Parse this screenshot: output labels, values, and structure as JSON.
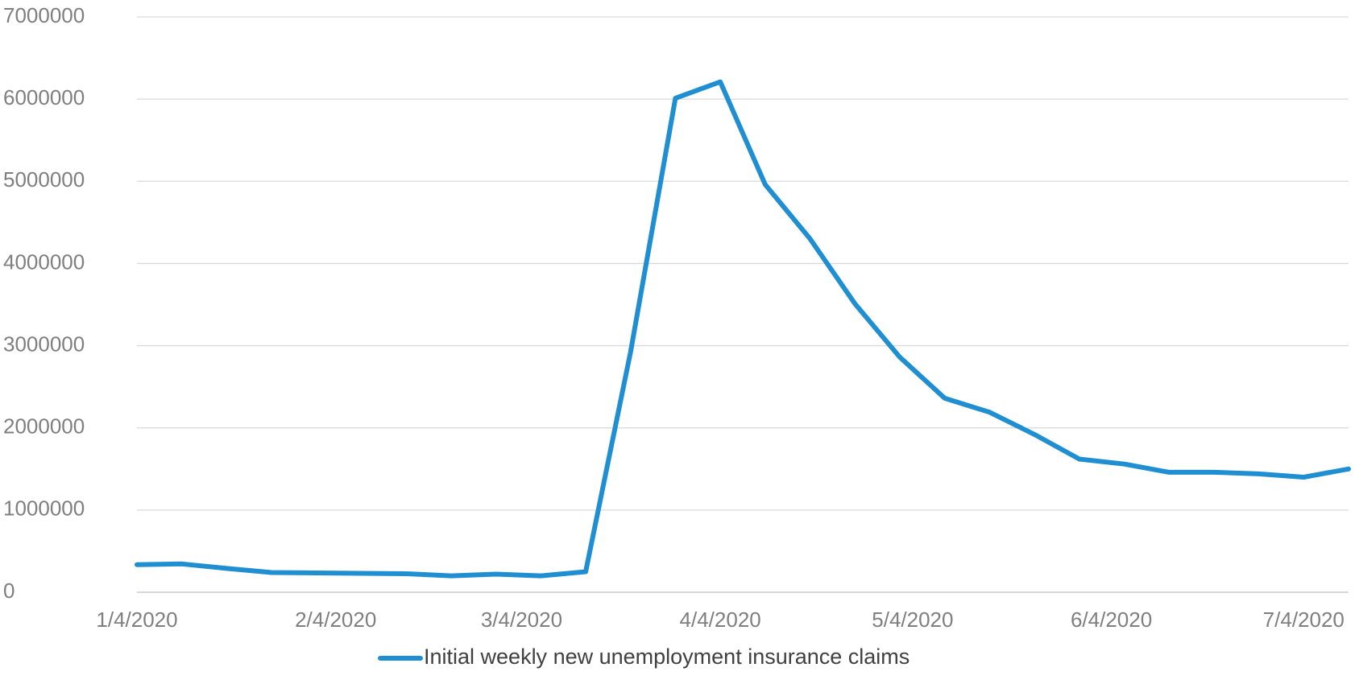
{
  "chart_data": {
    "type": "line",
    "x": [
      "1/4/2020",
      "1/11/2020",
      "1/18/2020",
      "1/25/2020",
      "2/1/2020",
      "2/8/2020",
      "2/15/2020",
      "2/22/2020",
      "2/29/2020",
      "3/7/2020",
      "3/14/2020",
      "3/21/2020",
      "3/28/2020",
      "4/4/2020",
      "4/11/2020",
      "4/18/2020",
      "4/25/2020",
      "5/2/2020",
      "5/9/2020",
      "5/16/2020",
      "5/23/2020",
      "5/30/2020",
      "6/6/2020",
      "6/13/2020",
      "6/20/2020",
      "6/27/2020",
      "7/4/2020",
      "7/11/2020"
    ],
    "series": [
      {
        "name": "Initial weekly new unemployment insurance claims",
        "color": "#1f8fd1",
        "values": [
          336000,
          345000,
          290000,
          240000,
          235000,
          230000,
          225000,
          200000,
          220000,
          200000,
          250000,
          2920000,
          6010000,
          6210000,
          4960000,
          4300000,
          3510000,
          2860000,
          2360000,
          2190000,
          1920000,
          1620000,
          1560000,
          1460000,
          1460000,
          1440000,
          1400000,
          1500000
        ]
      }
    ],
    "xlim": [
      "1/4/2020",
      "7/11/2020"
    ],
    "xticks": [
      "1/4/2020",
      "2/4/2020",
      "3/4/2020",
      "4/4/2020",
      "5/4/2020",
      "6/4/2020",
      "7/4/2020"
    ],
    "ylim": [
      0,
      7000000
    ],
    "yticks": [
      0,
      1000000,
      2000000,
      3000000,
      4000000,
      5000000,
      6000000,
      7000000
    ],
    "grid": true,
    "legend": "bottom"
  }
}
